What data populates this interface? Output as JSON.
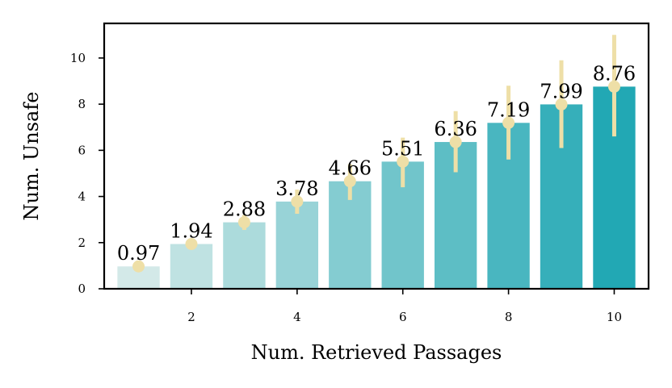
{
  "chart_data": {
    "type": "bar",
    "title": "",
    "xlabel": "Num. Retrieved Passages",
    "ylabel": "Num. Unsafe",
    "categories": [
      1,
      2,
      3,
      4,
      5,
      6,
      7,
      8,
      9,
      10
    ],
    "values": [
      0.97,
      1.94,
      2.88,
      3.78,
      4.66,
      5.51,
      6.36,
      7.19,
      7.99,
      8.76
    ],
    "value_labels": [
      "0.97",
      "1.94",
      "2.88",
      "3.78",
      "4.66",
      "5.51",
      "6.36",
      "7.19",
      "7.99",
      "8.76"
    ],
    "error_low": [
      0.88,
      1.86,
      2.55,
      3.25,
      3.85,
      4.4,
      5.05,
      5.6,
      6.1,
      6.6
    ],
    "error_high": [
      1.06,
      2.02,
      3.2,
      4.3,
      5.4,
      6.55,
      7.7,
      8.8,
      9.9,
      11.0
    ],
    "xlim": [
      0.35,
      10.65
    ],
    "ylim": [
      0,
      11.5
    ],
    "xticks": [
      2,
      4,
      6,
      8,
      10
    ],
    "yticks": [
      0,
      2,
      4,
      6,
      8,
      10
    ],
    "grid": false,
    "colors": {
      "bar_gradient_start": "#d3e9e8",
      "bar_gradient_end": "#22a8b4",
      "error_bar": "#eedfa7",
      "axis": "#000000"
    }
  }
}
